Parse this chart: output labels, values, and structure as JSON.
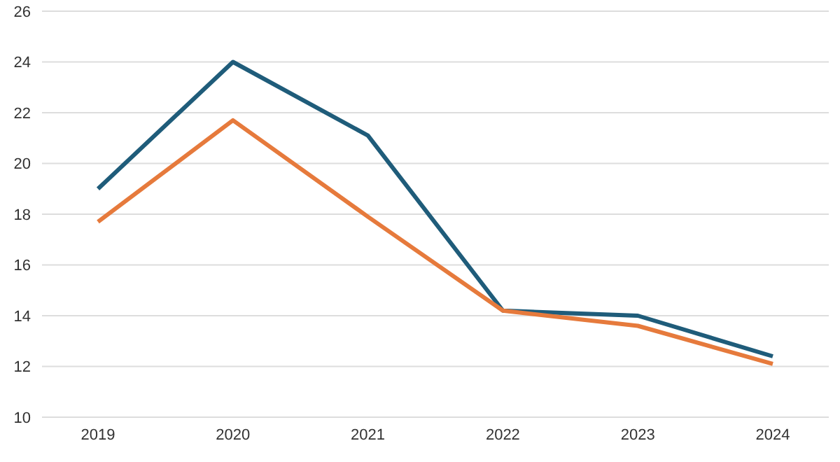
{
  "chart_data": {
    "type": "line",
    "categories": [
      "2019",
      "2020",
      "2021",
      "2022",
      "2023",
      "2024"
    ],
    "series": [
      {
        "color": "#1f5c7a",
        "values": [
          19.0,
          24.0,
          21.1,
          14.2,
          14.0,
          12.4
        ]
      },
      {
        "color": "#e67a3c",
        "values": [
          17.7,
          21.7,
          17.9,
          14.2,
          13.6,
          12.1
        ]
      }
    ],
    "ylim": [
      10,
      26
    ],
    "yticks": [
      10,
      12,
      14,
      16,
      18,
      20,
      22,
      24,
      26
    ],
    "grid": "y",
    "marker": "none",
    "line_style": "solid"
  }
}
